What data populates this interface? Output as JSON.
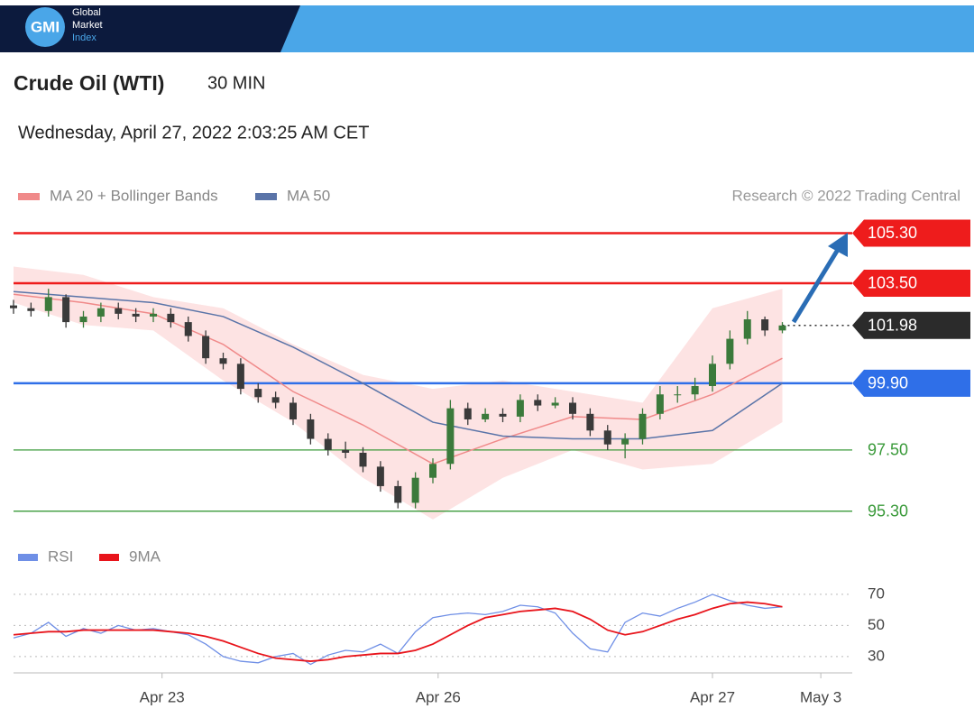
{
  "header": {
    "logo": "GMI",
    "brand": [
      "Global",
      "Market",
      "Index"
    ]
  },
  "instrument": "Crude Oil (WTI)",
  "interval": "30 MIN",
  "timestamp": "Wednesday, April 27, 2022 2:03:25 AM CET",
  "chart_data": [
    {
      "type": "candlestick",
      "source": "Research © 2022 Trading Central",
      "x": [
        0,
        1,
        2,
        3,
        4,
        5,
        6,
        7,
        8,
        9,
        10,
        11,
        12,
        13,
        14,
        15,
        16,
        17,
        18,
        19,
        20,
        21,
        22,
        23,
        24,
        25,
        26,
        27,
        28,
        29,
        30,
        31,
        32,
        33,
        34,
        35,
        36,
        37,
        38,
        39,
        40,
        41,
        42,
        43,
        44
      ],
      "open": [
        102.7,
        102.6,
        102.5,
        103.0,
        102.1,
        102.3,
        102.6,
        102.4,
        102.3,
        102.4,
        102.1,
        101.6,
        100.8,
        100.6,
        99.7,
        99.4,
        99.2,
        98.6,
        97.9,
        97.5,
        97.4,
        96.9,
        96.2,
        95.6,
        96.5,
        97.0,
        99.0,
        98.6,
        98.8,
        98.7,
        99.3,
        99.1,
        99.2,
        98.8,
        98.2,
        97.7,
        97.9,
        98.8,
        99.5,
        99.5,
        99.8,
        100.6,
        101.5,
        102.2,
        101.8
      ],
      "high": [
        102.9,
        102.8,
        103.3,
        103.1,
        102.5,
        102.8,
        102.8,
        102.6,
        102.6,
        102.6,
        102.3,
        101.8,
        101.0,
        100.8,
        99.9,
        99.6,
        99.4,
        98.8,
        98.1,
        97.8,
        97.6,
        97.1,
        96.4,
        96.7,
        97.2,
        99.3,
        99.2,
        99.0,
        99.0,
        99.5,
        99.5,
        99.4,
        99.4,
        99.0,
        98.4,
        98.1,
        99.0,
        99.8,
        99.8,
        100.1,
        100.9,
        101.8,
        102.5,
        102.3,
        102.1
      ],
      "low": [
        102.4,
        102.3,
        102.3,
        101.9,
        101.9,
        102.1,
        102.2,
        102.1,
        102.1,
        101.9,
        101.4,
        100.6,
        100.4,
        99.5,
        99.2,
        99.0,
        98.4,
        97.7,
        97.3,
        97.2,
        96.7,
        96.0,
        95.4,
        95.4,
        96.3,
        96.8,
        98.4,
        98.5,
        98.5,
        98.5,
        98.9,
        99.0,
        98.6,
        98.0,
        97.5,
        97.2,
        97.7,
        98.6,
        99.2,
        99.3,
        99.6,
        100.4,
        101.3,
        101.6,
        101.7
      ],
      "close": [
        102.6,
        102.5,
        103.0,
        102.1,
        102.3,
        102.6,
        102.4,
        102.3,
        102.4,
        102.1,
        101.6,
        100.8,
        100.6,
        99.7,
        99.4,
        99.2,
        98.6,
        97.9,
        97.5,
        97.4,
        96.9,
        96.2,
        95.6,
        96.5,
        97.0,
        99.0,
        98.6,
        98.8,
        98.7,
        99.3,
        99.1,
        99.2,
        98.8,
        98.2,
        97.7,
        97.9,
        98.8,
        99.5,
        99.5,
        99.8,
        100.6,
        101.5,
        102.2,
        101.8,
        101.98
      ],
      "up_color": "#3b7a3b",
      "down_color": "#3a3a3a",
      "series": [
        {
          "name": "MA 20 + Bollinger Bands",
          "color": "#f08a8a",
          "band_color": "#fde3e3",
          "x": [
            0,
            4,
            8,
            12,
            16,
            20,
            24,
            28,
            32,
            36,
            40,
            44
          ],
          "values": [
            103.1,
            102.8,
            102.4,
            101.3,
            99.6,
            98.4,
            97.0,
            97.9,
            98.7,
            98.6,
            99.5,
            100.8
          ],
          "upper": [
            104.1,
            103.8,
            103.0,
            102.6,
            101.3,
            100.2,
            99.7,
            100.0,
            99.6,
            99.2,
            102.6,
            103.3
          ],
          "lower": [
            102.8,
            102.0,
            101.8,
            100.0,
            98.5,
            96.5,
            95.0,
            96.5,
            97.5,
            96.8,
            97.0,
            98.5
          ]
        },
        {
          "name": "MA 50",
          "color": "#5a74a8",
          "x": [
            0,
            4,
            8,
            12,
            16,
            20,
            24,
            28,
            32,
            36,
            40,
            44
          ],
          "values": [
            103.2,
            103.0,
            102.8,
            102.3,
            101.2,
            99.9,
            98.5,
            98.0,
            97.9,
            97.9,
            98.2,
            99.9
          ]
        }
      ],
      "levels": [
        {
          "value": 105.3,
          "label": "105.30",
          "color": "#ee1c1c",
          "tag": true
        },
        {
          "value": 103.5,
          "label": "103.50",
          "color": "#ee1c1c",
          "tag": true
        },
        {
          "value": 101.98,
          "label": "101.98",
          "color": "#2b2b2b",
          "tag": true,
          "dotted": true
        },
        {
          "value": 99.9,
          "label": "99.90",
          "color": "#2f6fe8",
          "tag": true
        },
        {
          "value": 97.5,
          "label": "97.50",
          "color": "#3a9a3a",
          "tag": false
        },
        {
          "value": 95.3,
          "label": "95.30",
          "color": "#3a9a3a",
          "tag": false
        }
      ],
      "xlim": [
        0,
        48
      ],
      "ylim": [
        94.9,
        105.9
      ]
    },
    {
      "type": "line",
      "x": [
        0,
        1,
        2,
        3,
        4,
        5,
        6,
        7,
        8,
        9,
        10,
        11,
        12,
        13,
        14,
        15,
        16,
        17,
        18,
        19,
        20,
        21,
        22,
        23,
        24,
        25,
        26,
        27,
        28,
        29,
        30,
        31,
        32,
        33,
        34,
        35,
        36,
        37,
        38,
        39,
        40,
        41,
        42,
        43,
        44
      ],
      "series": [
        {
          "name": "RSI",
          "color": "#6f8fe6",
          "values": [
            42,
            45,
            52,
            43,
            48,
            45,
            50,
            47,
            48,
            46,
            44,
            38,
            30,
            27,
            26,
            30,
            32,
            25,
            31,
            34,
            33,
            38,
            32,
            46,
            55,
            57,
            58,
            57,
            59,
            63,
            62,
            58,
            45,
            35,
            33,
            52,
            58,
            56,
            61,
            65,
            70,
            66,
            63,
            61,
            62
          ]
        },
        {
          "name": "9MA",
          "color": "#e8141b",
          "values": [
            44,
            45,
            46,
            46,
            47,
            47,
            47,
            47,
            47,
            46,
            45,
            43,
            40,
            36,
            32,
            29,
            28,
            27,
            28,
            30,
            31,
            32,
            32,
            34,
            38,
            44,
            50,
            55,
            57,
            59,
            60,
            61,
            59,
            54,
            47,
            44,
            46,
            50,
            54,
            57,
            61,
            64,
            65,
            64,
            62
          ]
        }
      ],
      "xlim": [
        0,
        48
      ],
      "ylim": [
        19.5,
        77.5
      ],
      "yticks": [
        30,
        50,
        70
      ],
      "grid": true,
      "xticks": [
        {
          "value": 8.5,
          "label": "Apr 23"
        },
        {
          "value": 24.3,
          "label": "Apr 26"
        },
        {
          "value": 40,
          "label": "Apr 27"
        },
        {
          "value": 46.2,
          "label": "May 3"
        }
      ]
    }
  ]
}
